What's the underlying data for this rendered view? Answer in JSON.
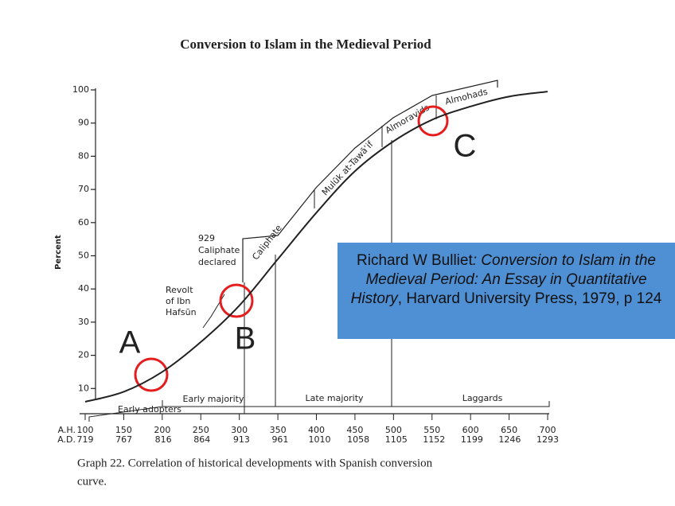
{
  "chart_data": {
    "type": "line",
    "title": "Conversion to Islam in the Medieval Period",
    "y_label": "Percent",
    "x_label": "A.H.",
    "x2_label": "A.D.",
    "x": [
      100,
      150,
      200,
      250,
      300,
      350,
      400,
      450,
      500,
      550,
      600,
      650,
      700
    ],
    "values": [
      6,
      9,
      15,
      24,
      35,
      49,
      63,
      75.5,
      84.5,
      91,
      95,
      98,
      99.5
    ],
    "color": "#222222",
    "xlim": [
      100,
      700
    ],
    "xticks": [
      100,
      150,
      200,
      250,
      300,
      350,
      400,
      450,
      500,
      550,
      600,
      650,
      700
    ],
    "x2lim": [
      719,
      1293
    ],
    "x2ticks": [
      719,
      767,
      816,
      864,
      913,
      961,
      1010,
      1058,
      1105,
      1152,
      1199,
      1246,
      1293
    ],
    "ylim": [
      0,
      100
    ],
    "yticks": [
      10,
      20,
      30,
      40,
      50,
      60,
      70,
      80,
      90,
      100
    ],
    "events": [
      "Caliphate",
      "Mulūk at-Tawāʾif",
      "Almoravids",
      "Almohads"
    ],
    "caliphate_note": [
      "929",
      "Caliphate",
      "declared"
    ],
    "revolt_note": [
      "Revolt",
      "of Ibn",
      "Hafsūn"
    ],
    "phases": [
      "Early adopters",
      "Early majority",
      "Late majority",
      "Laggards"
    ],
    "markers": [
      "A",
      "B",
      "C"
    ],
    "caption": [
      "Graph 22. Correlation of historical developments with Spanish conversion",
      "curve."
    ],
    "citation": [
      "Richard W Bulliet",
      ": Conversion to Islam in the Medieval Period: An Essay in Quantitative History",
      ", Harvard University Press, 1979, p 124"
    ]
  }
}
